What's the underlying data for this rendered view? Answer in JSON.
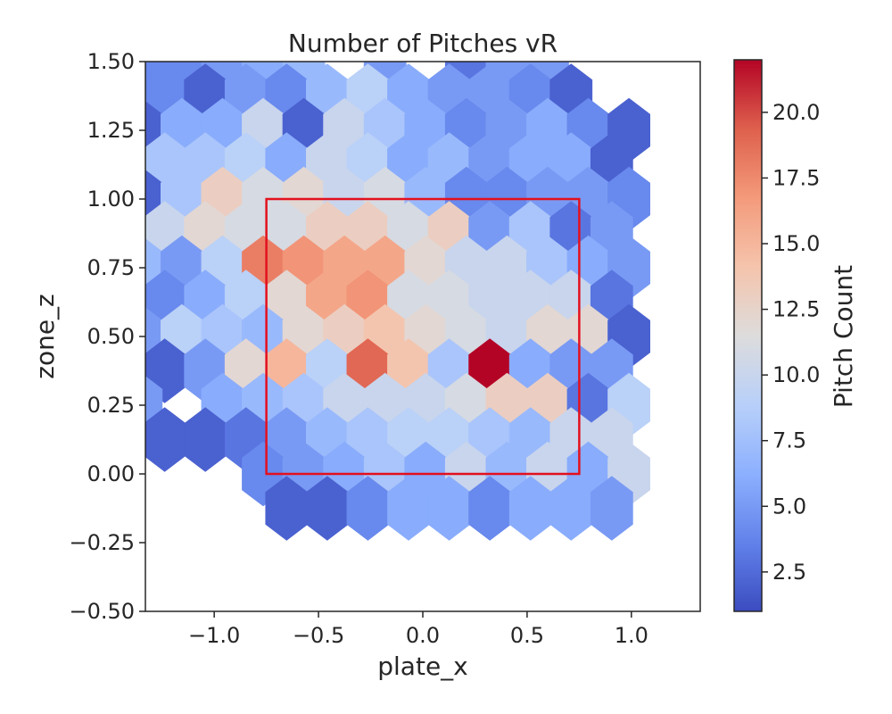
{
  "chart_data": {
    "type": "heatmap",
    "subtype": "hexbin",
    "title": "Number of Pitches vR",
    "xlabel": "plate_x",
    "ylabel": "zone_z",
    "xlim": [
      -1.33,
      1.33
    ],
    "ylim": [
      -0.5,
      1.5
    ],
    "x_ticks": [
      -1.0,
      -0.5,
      0.0,
      0.5,
      1.0
    ],
    "x_tick_labels": [
      "−1.0",
      "−0.5",
      "0.0",
      "0.5",
      "1.0"
    ],
    "y_ticks": [
      -0.5,
      -0.25,
      0.0,
      0.25,
      0.5,
      0.75,
      1.0,
      1.25,
      1.5
    ],
    "y_tick_labels": [
      "−0.50",
      "−0.25",
      "0.00",
      "0.25",
      "0.50",
      "0.75",
      "1.00",
      "1.25",
      "1.50"
    ],
    "hex_size": 0.1125,
    "hex_rows": [
      {
        "y": 1.5,
        "x_start": -1.35,
        "counts": [
          4,
          4,
          5,
          6,
          7,
          null,
          5,
          null,
          3,
          5,
          5,
          null
        ]
      },
      {
        "y": 1.375,
        "x_start": -1.2375,
        "counts": [
          4,
          2,
          5,
          4,
          7,
          9,
          6,
          5,
          5,
          4,
          2,
          null
        ]
      },
      {
        "y": 1.25,
        "x_start": -1.35,
        "counts": [
          2,
          6,
          6,
          10,
          2,
          10,
          8,
          6,
          4,
          5,
          6,
          4,
          2
        ]
      },
      {
        "y": 1.125,
        "x_start": -1.2375,
        "counts": [
          8,
          8,
          9,
          6,
          10,
          9,
          6,
          7,
          5,
          6,
          6,
          2
        ]
      },
      {
        "y": 1.0,
        "x_start": -1.35,
        "counts": [
          2,
          8,
          13,
          11,
          12,
          10,
          11,
          7,
          4,
          4,
          5,
          5,
          4
        ]
      },
      {
        "y": 0.875,
        "x_start": -1.2375,
        "counts": [
          10,
          12,
          11,
          11,
          13,
          13,
          11,
          13,
          5,
          8,
          3,
          5
        ]
      },
      {
        "y": 0.75,
        "x_start": -1.35,
        "counts": [
          7,
          5,
          9,
          18,
          17,
          16,
          16,
          12,
          10,
          10,
          8,
          6,
          5
        ]
      },
      {
        "y": 0.625,
        "x_start": -1.2375,
        "counts": [
          4,
          6,
          9,
          12,
          16,
          17,
          11,
          11,
          10,
          10,
          10,
          3
        ]
      },
      {
        "y": 0.5,
        "x_start": -1.35,
        "counts": [
          5,
          9,
          8,
          7,
          12,
          13,
          14,
          12,
          11,
          10,
          12,
          12,
          2
        ]
      },
      {
        "y": 0.375,
        "x_start": -1.2375,
        "counts": [
          2,
          5,
          12,
          15,
          9,
          19,
          14,
          8,
          22,
          6,
          5,
          5
        ]
      },
      {
        "y": 0.25,
        "x_start": -1.35,
        "counts": [
          5,
          null,
          6,
          7,
          8,
          10,
          10,
          10,
          11,
          13,
          13,
          3,
          9
        ]
      },
      {
        "y": 0.125,
        "x_start": -1.2375,
        "counts": [
          2,
          2,
          3,
          5,
          7,
          8,
          9,
          9,
          8,
          7,
          10,
          10
        ]
      },
      {
        "y": 0.0,
        "x_start": -1.35,
        "counts": [
          null,
          null,
          null,
          4,
          5,
          6,
          8,
          6,
          10,
          7,
          10,
          6,
          10
        ]
      },
      {
        "y": -0.125,
        "x_start": -1.2375,
        "counts": [
          null,
          null,
          null,
          2,
          2,
          4,
          6,
          6,
          4,
          6,
          6,
          5
        ]
      }
    ],
    "strike_zone": {
      "x": [
        -0.75,
        0.75
      ],
      "z": [
        0.0,
        1.0
      ],
      "color": "#e3101e"
    },
    "colorbar": {
      "label": "Pitch Count",
      "range": [
        1,
        22
      ],
      "ticks": [
        2.5,
        5.0,
        7.5,
        10.0,
        12.5,
        15.0,
        17.5,
        20.0
      ],
      "tick_labels": [
        "2.5",
        "5.0",
        "7.5",
        "10.0",
        "12.5",
        "15.0",
        "17.5",
        "20.0"
      ],
      "colormap": "coolwarm",
      "colormap_stops": [
        "#3b4cc0",
        "#6282ea",
        "#8db0fe",
        "#b8d0f9",
        "#dddcdc",
        "#f5c4ac",
        "#f49a7b",
        "#de604d",
        "#b40426"
      ]
    }
  }
}
